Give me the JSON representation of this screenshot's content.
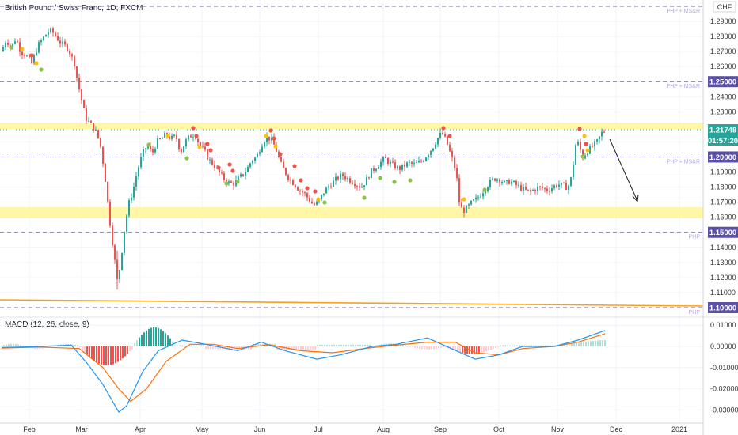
{
  "chart_title": "British Pound / Swiss Franc, 1D, FXCM",
  "currency": "CHF",
  "macd_title": "MACD (12, 26, close, 9)",
  "chart_data": [
    {
      "type": "candlestick",
      "x_ticks": [
        "Feb",
        "Mar",
        "Apr",
        "May",
        "Jun",
        "Jul",
        "Aug",
        "Sep",
        "Oct",
        "Nov",
        "Dec",
        "2021"
      ],
      "y_ticks": [
        "1.29000",
        "1.28000",
        "1.27000",
        "1.26000",
        "1.25000",
        "1.24000",
        "1.23000",
        "1.22000",
        "1.21000",
        "1.20000",
        "1.19000",
        "1.18000",
        "1.17000",
        "1.16000",
        "1.15000",
        "1.14000",
        "1.13000",
        "1.12000",
        "1.11000",
        "1.10000"
      ],
      "ylim": [
        1.096,
        1.3
      ],
      "current_price": "1.21748",
      "countdown": "01:57:20",
      "levels": [
        {
          "price": 1.3,
          "label": "1.3",
          "note": "PHP + MS&R"
        },
        {
          "price": 1.25,
          "label": "1.25000",
          "note": "PHP + MS&R"
        },
        {
          "price": 1.2,
          "label": "1.20000",
          "note": "PHP + MS&R"
        },
        {
          "price": 1.15,
          "label": "1.15000",
          "note": "PHP"
        },
        {
          "price": 1.1,
          "label": "1.10000",
          "note": "PHP"
        }
      ],
      "zones": [
        {
          "from": 1.217,
          "to": 1.22,
          "color": "#fff59d"
        },
        {
          "from": 1.163,
          "to": 1.166,
          "color": "#fff59d"
        }
      ],
      "colors": {
        "up": "#26a69a",
        "down": "#ef5350",
        "level": "#5b4fa8",
        "zone": "#fff59d",
        "trendline": "#f7a21b"
      }
    },
    {
      "type": "macd",
      "y_ticks": [
        "0.01000",
        "0.00000",
        "-0.01000",
        "-0.02000",
        "-0.03000"
      ],
      "ylim": [
        -0.035,
        0.012
      ],
      "colors": {
        "macd": "#2196f3",
        "signal": "#ff6d00"
      }
    }
  ]
}
